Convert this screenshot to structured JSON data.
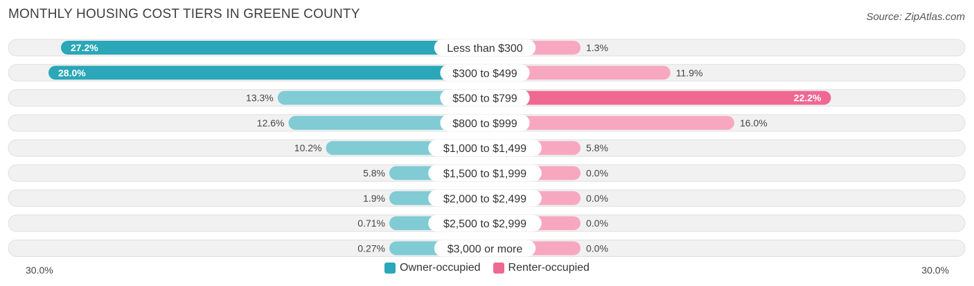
{
  "header": {
    "title": "MONTHLY HOUSING COST TIERS IN GREENE COUNTY",
    "source": "Source: ZipAtlas.com"
  },
  "legend": {
    "owner_label": "Owner-occupied",
    "renter_label": "Renter-occupied"
  },
  "colors": {
    "owner": "#2aa7b8",
    "owner_light": "#80cbd4",
    "renter": "#f06792",
    "renter_light": "#f7a8c0",
    "row_bg": "#f1f1f1"
  },
  "chart_data": {
    "type": "bar",
    "orientation": "horizontal-diverging",
    "categories": [
      "Less than $300",
      "$300 to $499",
      "$500 to $799",
      "$800 to $999",
      "$1,000 to $1,499",
      "$1,500 to $1,999",
      "$2,000 to $2,499",
      "$2,500 to $2,999",
      "$3,000 or more"
    ],
    "series": [
      {
        "name": "Owner-occupied",
        "values": [
          27.2,
          28.0,
          13.3,
          12.6,
          10.2,
          5.8,
          1.9,
          0.71,
          0.27
        ],
        "labels": [
          "27.2%",
          "28.0%",
          "13.3%",
          "12.6%",
          "10.2%",
          "5.8%",
          "1.9%",
          "0.71%",
          "0.27%"
        ]
      },
      {
        "name": "Renter-occupied",
        "values": [
          1.3,
          11.9,
          22.2,
          16.0,
          5.8,
          0.0,
          0.0,
          0.0,
          0.0
        ],
        "labels": [
          "1.3%",
          "11.9%",
          "22.2%",
          "16.0%",
          "5.8%",
          "0.0%",
          "0.0%",
          "0.0%",
          "0.0%"
        ]
      }
    ],
    "xlim": [
      -30,
      30
    ],
    "axis_left_label": "30.0%",
    "axis_right_label": "30.0%",
    "legend_position": "bottom-center"
  }
}
